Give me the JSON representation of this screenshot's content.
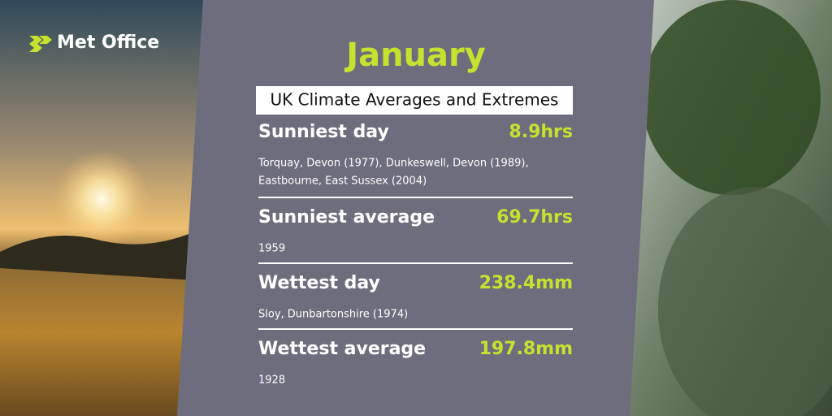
{
  "logo": "Met Office",
  "title": "January",
  "subtitle": "UK Climate Averages and Extremes",
  "records": [
    {
      "label": "Sunniest day",
      "value": "8.9hrs",
      "details": [
        "Torquay, Devon (1977), Dunkeswell, Devon (1989),",
        "Eastbourne, East Sussex (2004)"
      ]
    },
    {
      "label": "Sunniest average",
      "value": "69.7hrs",
      "details": [
        "1959"
      ]
    },
    {
      "label": "Wettest day",
      "value": "238.4mm",
      "details": [
        "Sloy, Dunbartonshire (1974)"
      ]
    },
    {
      "label": "Wettest average",
      "value": "197.8mm",
      "details": [
        "1928"
      ]
    }
  ]
}
